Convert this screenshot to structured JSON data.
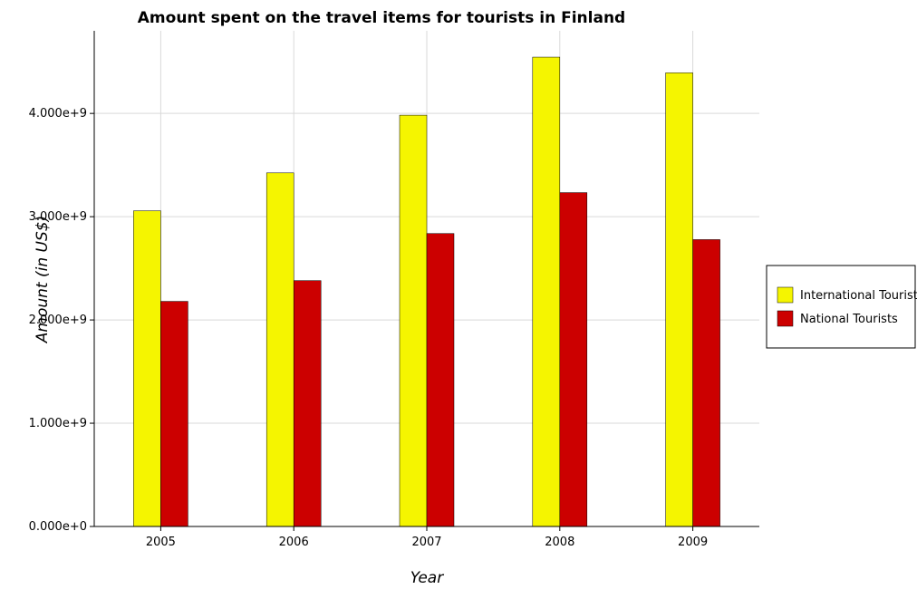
{
  "chart_data": {
    "type": "bar",
    "title": "Amount spent on the travel items for tourists in Finland",
    "xlabel": "Year",
    "ylabel": "Amount (in US$)",
    "categories": [
      "2005",
      "2006",
      "2007",
      "2008",
      "2009"
    ],
    "series": [
      {
        "name": "International Tourists",
        "color": "#f5f500",
        "values": [
          3057000000,
          3424000000,
          3983000000,
          4545000000,
          4393000000
        ]
      },
      {
        "name": "National Tourists",
        "color": "#cc0000",
        "values": [
          2180000000,
          2381000000,
          2837000000,
          3233000000,
          2778000000
        ]
      }
    ],
    "ylim": [
      0,
      4800000000
    ],
    "yticks": [
      0,
      1000000000,
      2000000000,
      3000000000,
      4000000000
    ],
    "ytick_labels": [
      "0.000e+0",
      "1.000e+9",
      "2.000e+9",
      "3.000e+9",
      "4.000e+9"
    ],
    "grid": true,
    "legend_position": "right"
  }
}
